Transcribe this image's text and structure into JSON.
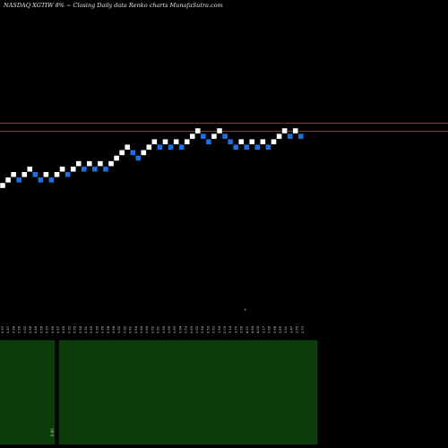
{
  "header": {
    "title": "NASDAQ XGTIW 8% ~  Closing Daily data  Renko  charts MunafaSutra.com"
  },
  "colors": {
    "background": "#000000",
    "up_brick": "#ffffff",
    "down_brick": "#1f6fe0",
    "reference_line": "#a0522d",
    "volume_panel": "#0a3d0a"
  },
  "chart_data": {
    "type": "renko",
    "title": "NASDAQ XGTIW 8% ~  Closing Daily data  Renko  charts MunafaSutra.com",
    "y_unit_note": "brick levels (no price axis printed)",
    "bricks": [
      {
        "level": 0,
        "dir": "up"
      },
      {
        "level": 1,
        "dir": "up"
      },
      {
        "level": 2,
        "dir": "up"
      },
      {
        "level": 1,
        "dir": "down"
      },
      {
        "level": 2,
        "dir": "up"
      },
      {
        "level": 3,
        "dir": "up"
      },
      {
        "level": 2,
        "dir": "down"
      },
      {
        "level": 1,
        "dir": "down"
      },
      {
        "level": 2,
        "dir": "up"
      },
      {
        "level": 1,
        "dir": "down"
      },
      {
        "level": 2,
        "dir": "up"
      },
      {
        "level": 3,
        "dir": "up"
      },
      {
        "level": 2,
        "dir": "down"
      },
      {
        "level": 3,
        "dir": "up"
      },
      {
        "level": 4,
        "dir": "up"
      },
      {
        "level": 3,
        "dir": "down"
      },
      {
        "level": 4,
        "dir": "up"
      },
      {
        "level": 3,
        "dir": "down"
      },
      {
        "level": 4,
        "dir": "up"
      },
      {
        "level": 3,
        "dir": "down"
      },
      {
        "level": 4,
        "dir": "up"
      },
      {
        "level": 5,
        "dir": "up"
      },
      {
        "level": 6,
        "dir": "up"
      },
      {
        "level": 7,
        "dir": "up"
      },
      {
        "level": 6,
        "dir": "down"
      },
      {
        "level": 5,
        "dir": "down"
      },
      {
        "level": 6,
        "dir": "up"
      },
      {
        "level": 7,
        "dir": "up"
      },
      {
        "level": 8,
        "dir": "up"
      },
      {
        "level": 7,
        "dir": "down"
      },
      {
        "level": 8,
        "dir": "up"
      },
      {
        "level": 7,
        "dir": "down"
      },
      {
        "level": 8,
        "dir": "up"
      },
      {
        "level": 7,
        "dir": "down"
      },
      {
        "level": 8,
        "dir": "up"
      },
      {
        "level": 9,
        "dir": "up"
      },
      {
        "level": 10,
        "dir": "up"
      },
      {
        "level": 9,
        "dir": "down"
      },
      {
        "level": 8,
        "dir": "down"
      },
      {
        "level": 9,
        "dir": "up"
      },
      {
        "level": 10,
        "dir": "up"
      },
      {
        "level": 9,
        "dir": "down"
      },
      {
        "level": 8,
        "dir": "down"
      },
      {
        "level": 7,
        "dir": "down"
      },
      {
        "level": 8,
        "dir": "up"
      },
      {
        "level": 7,
        "dir": "down"
      },
      {
        "level": 8,
        "dir": "up"
      },
      {
        "level": 7,
        "dir": "down"
      },
      {
        "level": 8,
        "dir": "up"
      },
      {
        "level": 7,
        "dir": "down"
      },
      {
        "level": 8,
        "dir": "up"
      },
      {
        "level": 9,
        "dir": "up"
      },
      {
        "level": 10,
        "dir": "up"
      },
      {
        "level": 9,
        "dir": "down"
      },
      {
        "level": 10,
        "dir": "up"
      },
      {
        "level": 9,
        "dir": "down"
      }
    ],
    "reference_levels": [
      11.5,
      10.0
    ],
    "volume_panels": [
      {
        "name": "left"
      },
      {
        "name": "right"
      }
    ],
    "volume_label": "0.00",
    "axis_marker": "+",
    "x_tick_labels": [
      "0.57",
      "0.57",
      "0.56",
      "0.56",
      "0.62",
      "0.56",
      "0.49",
      "0.56",
      "0.57",
      "0.56",
      "0.57",
      "0.55",
      "0.52",
      "0.55",
      "0.54",
      "0.51",
      "0.55",
      "0.56",
      "0.55",
      "0.58",
      "0.58",
      "0.62",
      "0.62",
      "0.61",
      "0.64",
      "0.64",
      "0.64",
      "0.62",
      "0.61",
      "0.65",
      "0.65",
      "0.63",
      "0.64",
      "0.63",
      "0.63",
      "0.62",
      "0.54",
      "0.59",
      "0.53",
      "1.54",
      "2.09",
      "3.14",
      "3.70",
      "3.56",
      "4.21",
      "4.45",
      "4.04",
      "3.17",
      "2.66",
      "2.66",
      "2.85",
      "3.51",
      "3.47",
      "2.55",
      "2.73"
    ]
  }
}
